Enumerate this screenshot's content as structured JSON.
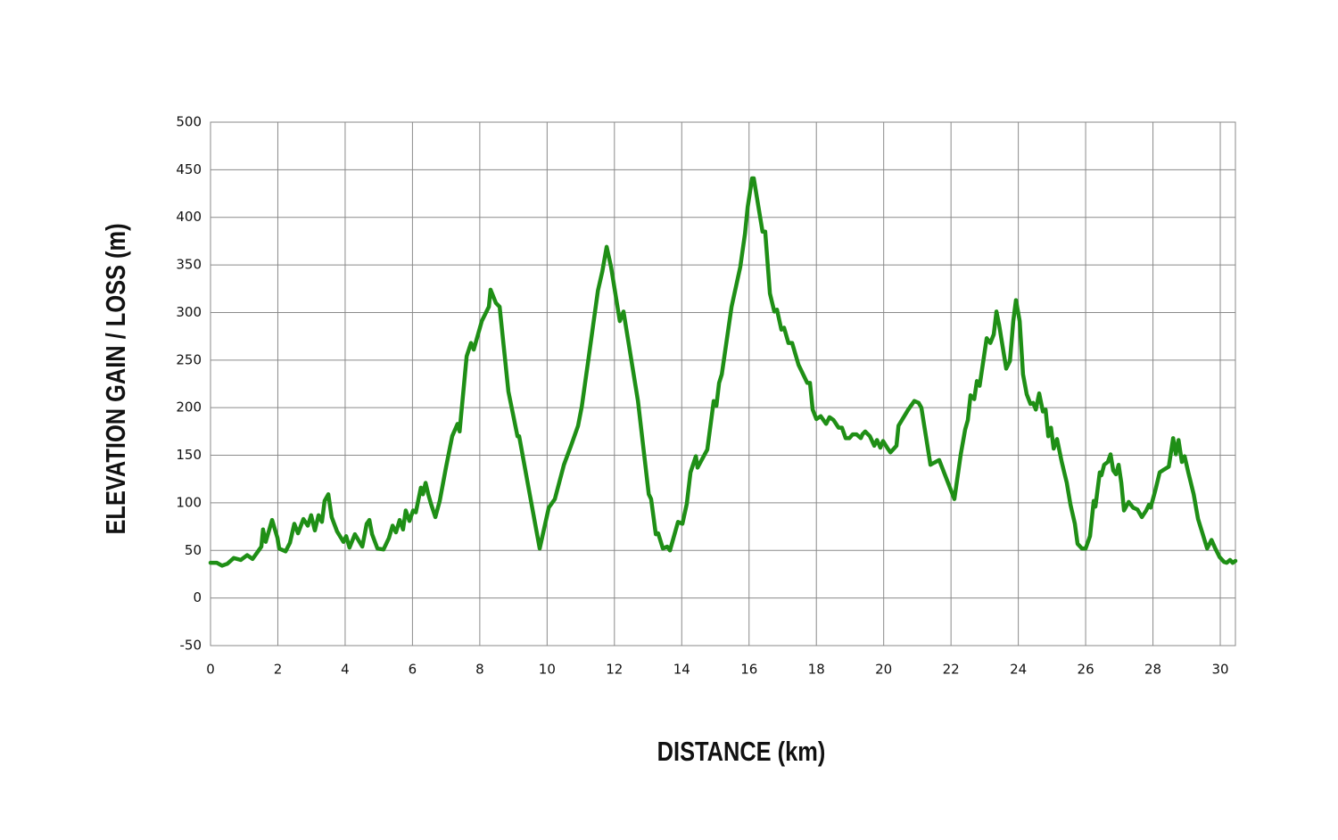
{
  "chart_data": {
    "type": "line",
    "x_label": "DISTANCE (km)",
    "y_label": "ELEVATION GAIN / LOSS (m)",
    "color": "#1f8f16",
    "grid": true,
    "xlim": [
      0,
      30.45
    ],
    "ylim": [
      -50,
      500
    ],
    "xticks": [
      0,
      2,
      4,
      6,
      8,
      10,
      12,
      14,
      16,
      18,
      20,
      22,
      24,
      26,
      28,
      30
    ],
    "yticks": [
      -50,
      0,
      50,
      100,
      150,
      200,
      250,
      300,
      350,
      400,
      450,
      500
    ],
    "x": [
      0,
      0.19,
      0.34,
      0.5,
      0.69,
      0.9,
      1.09,
      1.25,
      1.43,
      1.51,
      1.56,
      1.64,
      1.83,
      1.99,
      2.04,
      2.23,
      2.36,
      2.49,
      2.6,
      2.76,
      2.89,
      2.99,
      3.1,
      3.21,
      3.31,
      3.39,
      3.5,
      3.6,
      3.76,
      3.95,
      4.03,
      4.13,
      4.29,
      4.51,
      4.64,
      4.72,
      4.8,
      4.96,
      5.14,
      5.3,
      5.41,
      5.51,
      5.62,
      5.72,
      5.8,
      5.91,
      6.02,
      6.1,
      6.25,
      6.31,
      6.39,
      6.47,
      6.55,
      6.68,
      6.81,
      7.0,
      7.18,
      7.34,
      7.4,
      7.61,
      7.74,
      7.82,
      8.06,
      8.27,
      8.32,
      8.48,
      8.59,
      8.85,
      9.12,
      9.17,
      9.51,
      9.78,
      10.05,
      10.23,
      10.5,
      10.71,
      10.92,
      11.03,
      11.24,
      11.51,
      11.64,
      11.77,
      11.9,
      12.16,
      12.27,
      12.7,
      13.02,
      13.09,
      13.23,
      13.3,
      13.44,
      13.57,
      13.65,
      13.89,
      14.02,
      14.15,
      14.26,
      14.42,
      14.47,
      14.76,
      14.95,
      15.03,
      15.11,
      15.19,
      15.48,
      15.74,
      15.88,
      15.96,
      16.09,
      16.14,
      16.4,
      16.48,
      16.62,
      16.75,
      16.83,
      16.96,
      17.04,
      17.17,
      17.28,
      17.47,
      17.73,
      17.81,
      17.89,
      18.0,
      18.13,
      18.29,
      18.39,
      18.51,
      18.66,
      18.76,
      18.87,
      18.98,
      19.08,
      19.19,
      19.32,
      19.37,
      19.45,
      19.59,
      19.72,
      19.8,
      19.9,
      19.98,
      20.12,
      20.2,
      20.38,
      20.44,
      20.73,
      20.91,
      21.04,
      21.12,
      21.39,
      21.49,
      21.65,
      22.1,
      22.29,
      22.42,
      22.5,
      22.58,
      22.69,
      22.77,
      22.85,
      23.06,
      23.17,
      23.27,
      23.35,
      23.43,
      23.64,
      23.75,
      23.85,
      23.93,
      24.04,
      24.14,
      24.25,
      24.36,
      24.44,
      24.52,
      24.62,
      24.73,
      24.81,
      24.89,
      24.97,
      25.05,
      25.15,
      25.29,
      25.44,
      25.55,
      25.68,
      25.76,
      25.89,
      26.0,
      26.13,
      26.24,
      26.29,
      26.42,
      26.47,
      26.55,
      26.66,
      26.74,
      26.82,
      26.9,
      26.98,
      27.06,
      27.14,
      27.28,
      27.41,
      27.54,
      27.67,
      27.8,
      27.88,
      27.93,
      28.07,
      28.2,
      28.33,
      28.47,
      28.6,
      28.68,
      28.76,
      28.86,
      28.94,
      29.05,
      29.21,
      29.34,
      29.48,
      29.61,
      29.74,
      29.84,
      29.98,
      30.11,
      30.19,
      30.29,
      30.37,
      30.45
    ],
    "values": [
      37,
      37,
      34,
      36,
      42,
      40,
      45,
      41,
      50,
      54,
      72,
      59,
      82,
      63,
      52,
      49,
      58,
      78,
      68,
      83,
      76,
      87,
      71,
      87,
      80,
      102,
      109,
      85,
      70,
      59,
      65,
      53,
      67,
      54,
      78,
      82,
      67,
      52,
      51,
      63,
      76,
      69,
      82,
      72,
      92,
      81,
      92,
      90,
      116,
      109,
      121,
      109,
      99,
      85,
      102,
      138,
      170,
      183,
      175,
      254,
      268,
      261,
      291,
      306,
      324,
      310,
      306,
      217,
      170,
      170,
      104,
      52,
      95,
      104,
      140,
      160,
      181,
      201,
      254,
      323,
      343,
      369,
      348,
      291,
      301,
      207,
      109,
      104,
      67,
      68,
      52,
      54,
      50,
      80,
      78,
      99,
      132,
      149,
      137,
      156,
      207,
      202,
      226,
      235,
      306,
      348,
      383,
      411,
      441,
      441,
      385,
      385,
      320,
      301,
      303,
      282,
      284,
      268,
      268,
      245,
      226,
      226,
      198,
      188,
      191,
      183,
      190,
      187,
      179,
      179,
      168,
      168,
      172,
      172,
      168,
      172,
      175,
      170,
      160,
      166,
      158,
      165,
      157,
      153,
      160,
      181,
      198,
      207,
      205,
      200,
      140,
      142,
      145,
      104,
      151,
      177,
      187,
      213,
      209,
      228,
      223,
      273,
      268,
      277,
      301,
      287,
      241,
      249,
      291,
      313,
      291,
      235,
      214,
      204,
      205,
      198,
      215,
      196,
      198,
      170,
      179,
      157,
      167,
      143,
      121,
      98,
      78,
      57,
      52,
      52,
      65,
      102,
      96,
      132,
      129,
      140,
      143,
      151,
      134,
      130,
      140,
      121,
      92,
      101,
      95,
      93,
      85,
      92,
      98,
      95,
      113,
      132,
      135,
      138,
      168,
      151,
      166,
      143,
      149,
      132,
      109,
      83,
      67,
      52,
      61,
      53,
      43,
      38,
      37,
      40,
      37,
      39
    ]
  }
}
